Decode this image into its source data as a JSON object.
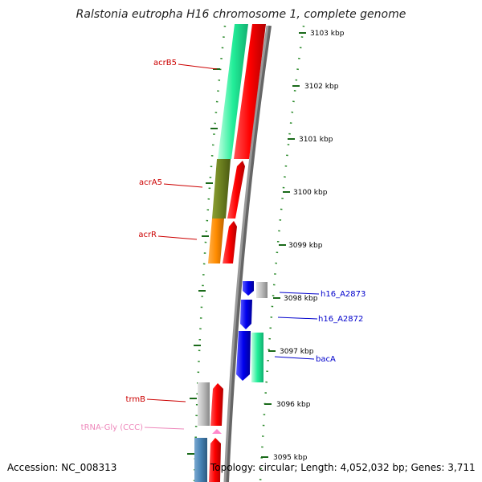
{
  "title": "Ralstonia eutropha H16 chromosome 1, complete genome",
  "footer": {
    "accession": "Accession: NC_008313",
    "summary": "Topology: circular; Length: 4,052,032 bp; Genes: 3,711"
  },
  "ticks": [
    {
      "label": "3103 kbp"
    },
    {
      "label": "3102 kbp"
    },
    {
      "label": "3101 kbp"
    },
    {
      "label": "3100 kbp"
    },
    {
      "label": "3099 kbp"
    },
    {
      "label": "3098 kbp"
    },
    {
      "label": "3097 kbp"
    },
    {
      "label": "3096 kbp"
    },
    {
      "label": "3095 kbp"
    }
  ],
  "gene_labels": [
    {
      "text": "acrB5",
      "color": "#cc0000"
    },
    {
      "text": "acrA5",
      "color": "#cc0000"
    },
    {
      "text": "acrR",
      "color": "#cc0000"
    },
    {
      "text": "h16_A2873",
      "color": "#0000cc"
    },
    {
      "text": "h16_A2872",
      "color": "#0000cc"
    },
    {
      "text": "bacA",
      "color": "#0000cc"
    },
    {
      "text": "trmB",
      "color": "#cc0000"
    },
    {
      "text": "tRNA-Gly (CCC)",
      "color": "#ee88bb"
    }
  ],
  "colors": {
    "backbone": "#888888",
    "cds": "#ff0000",
    "tick_dots": "#2a8a2a",
    "acrB5": "#22ee99",
    "acrA5": "#6b7f1f",
    "acrR": "#ff8c00",
    "reverse_cds": "#0000ee",
    "trmB": "#aaaaaa",
    "trna": "#ff88cc",
    "blue_gene": "#4682b4"
  }
}
